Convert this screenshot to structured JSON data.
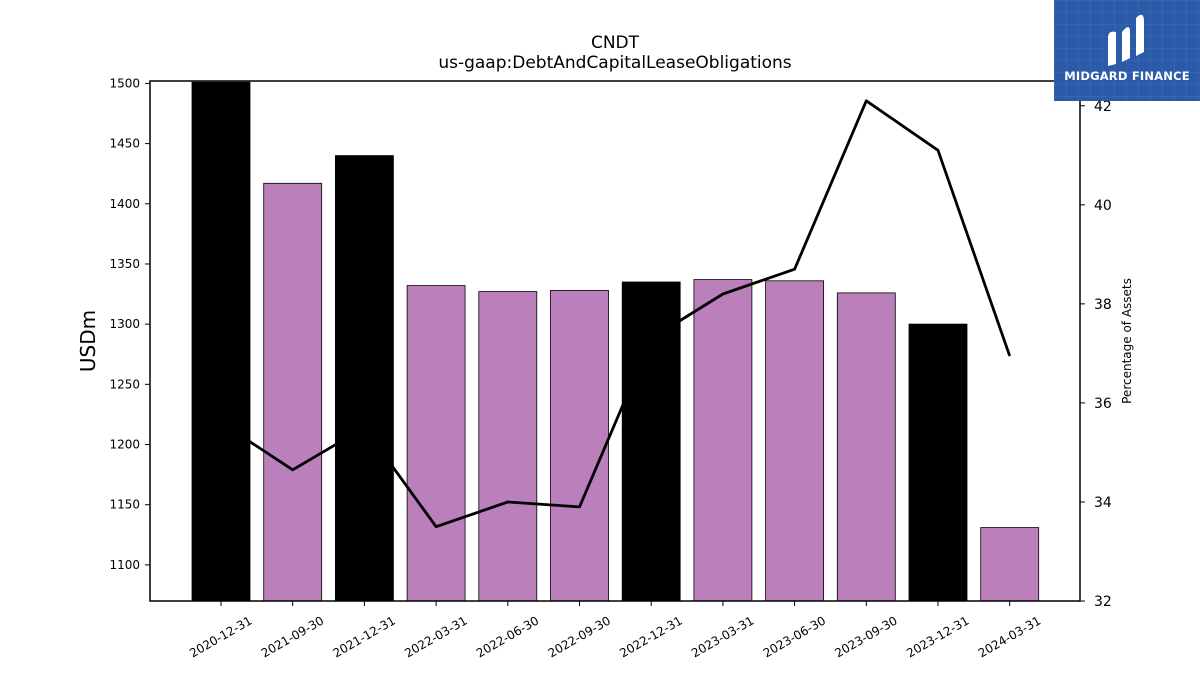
{
  "chart_data": {
    "type": "bar",
    "title": "CNDT",
    "subtitle": "us-gaap:DebtAndCapitalLeaseObligations",
    "ylabel": "USDm",
    "ylabel_right": "Percentage of Assets",
    "categories": [
      "2020-12-31",
      "2021-09-30",
      "2021-12-31",
      "2022-03-31",
      "2022-06-30",
      "2022-09-30",
      "2022-12-31",
      "2023-03-31",
      "2023-06-30",
      "2023-09-30",
      "2023-12-31",
      "2024-03-31"
    ],
    "values": [
      1501,
      1417,
      1440,
      1332,
      1327,
      1328,
      1335,
      1337,
      1336,
      1326,
      1300,
      1131
    ],
    "bar_colors": [
      "#000000",
      "#bb7fbb",
      "#000000",
      "#bb7fbb",
      "#bb7fbb",
      "#bb7fbb",
      "#000000",
      "#bb7fbb",
      "#bb7fbb",
      "#bb7fbb",
      "#000000",
      "#bb7fbb"
    ],
    "line_series": {
      "values": [
        35.6,
        34.65,
        35.5,
        33.5,
        34.0,
        33.9,
        37.3,
        38.2,
        38.7,
        42.1,
        41.1,
        36.95
      ],
      "color": "#000000",
      "axis": "right"
    },
    "ylim": [
      1070,
      1502
    ],
    "yticks": [
      1100,
      1150,
      1200,
      1250,
      1300,
      1350,
      1400,
      1450,
      1500
    ],
    "ylim_right": [
      32,
      42.5
    ],
    "yticks_right": [
      32,
      34,
      36,
      38,
      40,
      42
    ],
    "grid": false
  },
  "logo": {
    "text": "MIDGARD FINANCE"
  }
}
